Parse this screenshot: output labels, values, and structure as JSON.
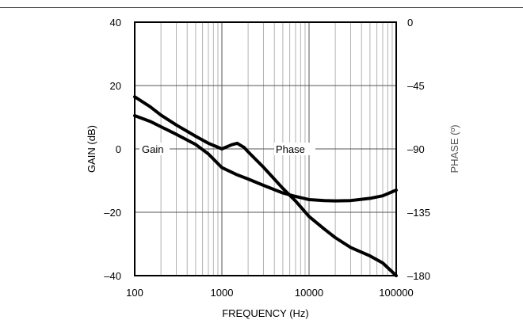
{
  "chart_data": {
    "type": "line",
    "title": "",
    "xlabel": "FREQUENCY (Hz)",
    "ylabel": "GAIN (dB)",
    "ylabel_right": "PHASE (º)",
    "x_scale": "log",
    "xlim": [
      100,
      100000
    ],
    "ylim": [
      -40,
      40
    ],
    "ylim_right": [
      -180,
      0
    ],
    "x_ticks": [
      "100",
      "1000",
      "10000",
      "100000"
    ],
    "y_ticks": [
      "40",
      "20",
      "0",
      "–20",
      "–40"
    ],
    "y_ticks_right": [
      "0",
      "–45",
      "–90",
      "–135",
      "–180"
    ],
    "grid": true,
    "series": [
      {
        "name": "Gain",
        "axis": "left",
        "x": [
          100,
          150,
          200,
          300,
          500,
          700,
          1000,
          1500,
          2000,
          3000,
          5000,
          7000,
          10000,
          15000,
          20000,
          30000,
          50000,
          70000,
          100000
        ],
        "y": [
          10.5,
          8.7,
          7.0,
          4.6,
          1.4,
          -1.6,
          -5.9,
          -8.2,
          -9.5,
          -11.5,
          -13.9,
          -15.0,
          -16.0,
          -16.3,
          -16.4,
          -16.3,
          -15.6,
          -14.8,
          -13.0
        ]
      },
      {
        "name": "Phase",
        "axis": "right",
        "x": [
          100,
          150,
          200,
          300,
          500,
          700,
          1000,
          1300,
          1500,
          1800,
          2000,
          3000,
          5000,
          7000,
          10000,
          15000,
          20000,
          30000,
          50000,
          70000,
          100000
        ],
        "y": [
          -53,
          -60,
          -66,
          -73,
          -81,
          -86,
          -90,
          -87,
          -86,
          -89,
          -92,
          -103,
          -118,
          -127,
          -138,
          -147,
          -153,
          -160,
          -166,
          -171,
          -180
        ]
      }
    ]
  }
}
